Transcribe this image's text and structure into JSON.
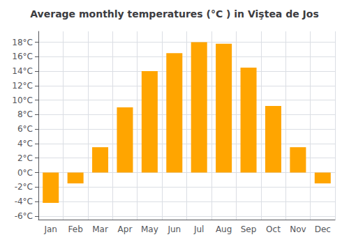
{
  "chart_data": {
    "type": "bar",
    "title": "Average monthly temperatures (°C ) in Viştea de Jos",
    "categories": [
      "Jan",
      "Feb",
      "Mar",
      "Apr",
      "May",
      "Jun",
      "Jul",
      "Aug",
      "Sep",
      "Oct",
      "Nov",
      "Dec"
    ],
    "values": [
      -4.2,
      -1.5,
      3.5,
      9.0,
      14.0,
      16.5,
      18.0,
      17.8,
      14.5,
      9.2,
      3.5,
      -1.5
    ],
    "color": "#FFA500",
    "ylim": [
      -6.5,
      19.5
    ],
    "yticks": [
      {
        "value": -6,
        "label": "-6°C"
      },
      {
        "value": -4,
        "label": "-4°C"
      },
      {
        "value": -2,
        "label": "-2°C"
      },
      {
        "value": 0,
        "label": "0°C"
      },
      {
        "value": 2,
        "label": "2°C"
      },
      {
        "value": 4,
        "label": "4°C"
      },
      {
        "value": 6,
        "label": "6°C"
      },
      {
        "value": 8,
        "label": "8°C"
      },
      {
        "value": 10,
        "label": "10°C"
      },
      {
        "value": 12,
        "label": "12°C"
      },
      {
        "value": 14,
        "label": "14°C"
      },
      {
        "value": 16,
        "label": "16°C"
      },
      {
        "value": 18,
        "label": "18°C"
      }
    ],
    "grid": true
  }
}
